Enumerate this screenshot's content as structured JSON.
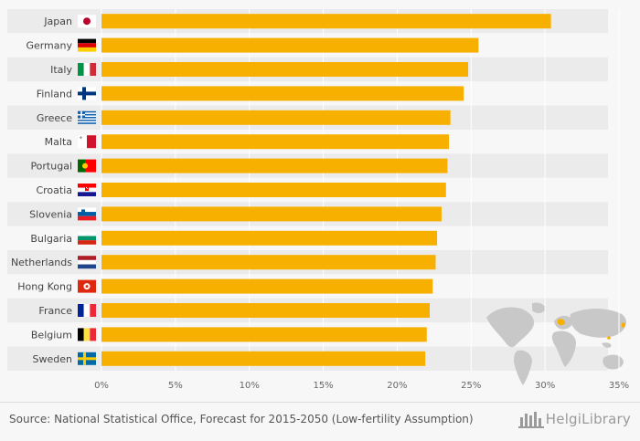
{
  "chart_data": {
    "type": "bar",
    "orientation": "horizontal",
    "categories": [
      "Japan",
      "Germany",
      "Italy",
      "Finland",
      "Greece",
      "Malta",
      "Portugal",
      "Croatia",
      "Slovenia",
      "Bulgaria",
      "Netherlands",
      "Hong Kong",
      "France",
      "Belgium",
      "Sweden"
    ],
    "values": [
      30.4,
      25.5,
      24.8,
      24.5,
      23.6,
      23.5,
      23.4,
      23.3,
      23.0,
      22.7,
      22.6,
      22.4,
      22.2,
      22.0,
      21.9
    ],
    "unit": "%",
    "xlim": [
      0,
      35
    ],
    "xticks": [
      "0%",
      "5%",
      "10%",
      "15%",
      "20%",
      "25%",
      "30%",
      "35%"
    ],
    "bar_color": "#f7b000",
    "grid": true
  },
  "flags": [
    "japan-flag-icon",
    "germany-flag-icon",
    "italy-flag-icon",
    "finland-flag-icon",
    "greece-flag-icon",
    "malta-flag-icon",
    "portugal-flag-icon",
    "croatia-flag-icon",
    "slovenia-flag-icon",
    "bulgaria-flag-icon",
    "netherlands-flag-icon",
    "hong-kong-flag-icon",
    "france-flag-icon",
    "belgium-flag-icon",
    "sweden-flag-icon"
  ],
  "decoration": {
    "map": "world-map-icon",
    "map_color": "#c8c8c8",
    "highlight_color": "#f7b000"
  },
  "footer": {
    "source": "Source: National Statistical Office, Forecast for 2015-2050 (Low-fertility Assumption)",
    "logo": "HelgiLibrary"
  }
}
